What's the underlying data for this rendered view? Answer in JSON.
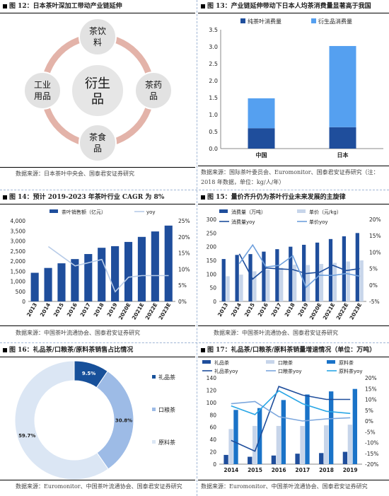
{
  "panels": {
    "p12": {
      "title": "图 12：日本茶叶深加工带动产业链延伸",
      "source": "数据来源：日本茶叶中央会、国泰君安证券研究"
    },
    "p13": {
      "title": "图 13：产业链延伸带动下日本人均茶消费量显著高于我国",
      "source_line1": "数据来源：国际茶叶委员会、Euromonitor、国泰君安证券研究（注：",
      "source_line2": "2018 年数据，单位：kg/人/年）"
    },
    "p14": {
      "title": "图 14：预计 2019-2023 年茶叶行业 CAGR 为 8%",
      "source": "数据来源：中国茶叶流通协会、国泰君安证券研究"
    },
    "p15": {
      "title": "图 15：量价齐升仍为茶叶行业未来发展的主旋律",
      "source": "数据来源：中国茶叶流通协会、国泰君安证券研究"
    },
    "p16": {
      "title": "图 16：礼品茶/口粮茶/原料茶销售占比情况",
      "source": "数据来源：Euromonitor、中国茶叶流通协会、国泰君安证券研究"
    },
    "p17": {
      "title": "图 17：礼品茶/口粮茶/原料茶销量增速情况（单位：万吨）",
      "source": "数据来源：Euromonitor、中国茶叶流通协会、国泰君安证券研究"
    }
  },
  "diagram": {
    "center_line1": "衍生",
    "center_line2": "品",
    "nodes": [
      {
        "id": "top",
        "line1": "茶饮",
        "line2": "料"
      },
      {
        "id": "right",
        "line1": "茶药",
        "line2": "品"
      },
      {
        "id": "bottom",
        "line1": "茶食",
        "line2": "品"
      },
      {
        "id": "left",
        "line1": "工业",
        "line2": "用品"
      }
    ],
    "colors": {
      "ring": "#e3b3a9",
      "node": "#e2e2e2",
      "text": "#111111"
    }
  },
  "chart_data": [
    {
      "id": "fig13",
      "type": "bar",
      "stacked": true,
      "categories": [
        "中国",
        "日本"
      ],
      "series": [
        {
          "name": "纯茶叶消费量",
          "values": [
            0.6,
            0.63
          ],
          "color": "#1f4e9c"
        },
        {
          "name": "衍生品消费量",
          "values": [
            0.88,
            2.39
          ],
          "color": "#55a0f0"
        }
      ],
      "ylim": [
        0,
        3.5
      ],
      "yticks": [
        "0.0",
        "0.5",
        "1.0",
        "1.5",
        "2.0",
        "2.5",
        "3.0",
        "3.5"
      ],
      "legend": "top"
    },
    {
      "id": "fig14",
      "type": "bar+line",
      "categories": [
        "2013",
        "2014",
        "2015",
        "2016",
        "2017",
        "2018",
        "2019",
        "2020E",
        "2021E",
        "2022E",
        "2023E"
      ],
      "series": [
        {
          "name": "茶叶销售额（亿元）",
          "kind": "bar",
          "axis": "left",
          "values": [
            1420,
            1660,
            1890,
            2100,
            2350,
            2660,
            2740,
            2950,
            3200,
            3470,
            3760
          ],
          "color": "#1f4e9c"
        },
        {
          "name": "yoy",
          "kind": "line",
          "axis": "right",
          "values": [
            null,
            17,
            14,
            11,
            12,
            13,
            3,
            7.5,
            8,
            8,
            8
          ],
          "color": "#b8cce8"
        }
      ],
      "ylim_left": [
        0,
        4000
      ],
      "yticks_left": [
        "0",
        "500",
        "1,000",
        "1,500",
        "2,000",
        "2,500",
        "3,000",
        "3,500",
        "4,000"
      ],
      "ylim_right": [
        0,
        25
      ],
      "yticks_right": [
        "0%",
        "5%",
        "10%",
        "15%",
        "20%",
        "25%"
      ],
      "legend": "top"
    },
    {
      "id": "fig15",
      "type": "bar+line",
      "categories": [
        "2013",
        "2014",
        "2015",
        "2016",
        "2017",
        "2018",
        "2019",
        "2020E",
        "2021E",
        "2022E",
        "2023E"
      ],
      "series": [
        {
          "name": "消费量（万吨）",
          "kind": "bar",
          "axis": "left",
          "values": [
            155,
            170,
            173,
            182,
            191,
            200,
            207,
            215,
            228,
            238,
            250
          ],
          "color": "#1f4e9c"
        },
        {
          "name": "单价（元/kg）",
          "kind": "bar",
          "axis": "left",
          "values": [
            92,
            98,
            110,
            116,
            123,
            134,
            133,
            137,
            141,
            146,
            150
          ],
          "color": "#c7d5ea"
        },
        {
          "name": "消费量yoy",
          "kind": "line",
          "axis": "right",
          "values": [
            null,
            9.5,
            1.8,
            5.2,
            4.9,
            4.7,
            3.5,
            3.9,
            6.0,
            4.4,
            5.0
          ],
          "color": "#1f4e9c"
        },
        {
          "name": "单价yoy",
          "kind": "line",
          "axis": "right",
          "values": [
            null,
            6.5,
            12.2,
            5.5,
            6.0,
            8.9,
            -0.7,
            3.0,
            2.9,
            3.5,
            2.7
          ],
          "color": "#6fa0dc"
        }
      ],
      "ylim_left": [
        0,
        300
      ],
      "yticks_left": [
        "0",
        "50",
        "100",
        "150",
        "200",
        "250",
        "300"
      ],
      "ylim_right": [
        -5,
        20
      ],
      "yticks_right": [
        "-5%",
        "0%",
        "5%",
        "10%",
        "15%",
        "20%"
      ],
      "legend": "top"
    },
    {
      "id": "fig16",
      "type": "pie",
      "donut": true,
      "labels": [
        "礼品茶",
        "口粮茶",
        "原料茶"
      ],
      "values": [
        9.5,
        30.8,
        59.7
      ],
      "value_labels": [
        "9.5%",
        "30.8%",
        "59.7%"
      ],
      "colors": [
        "#17509a",
        "#9dbbe6",
        "#dbe6f4"
      ],
      "legend": "right"
    },
    {
      "id": "fig17",
      "type": "bar+line",
      "categories": [
        "2014",
        "2015",
        "2016",
        "2017",
        "2018",
        "2019"
      ],
      "series": [
        {
          "name": "礼品茶",
          "kind": "bar",
          "axis": "left",
          "values": [
            15,
            12,
            14,
            17,
            18,
            20
          ],
          "color": "#1f4e9c"
        },
        {
          "name": "口粮茶",
          "kind": "bar",
          "axis": "left",
          "values": [
            57,
            62,
            62,
            62,
            63,
            64
          ],
          "color": "#c7d5ea"
        },
        {
          "name": "原料茶",
          "kind": "bar",
          "axis": "left",
          "values": [
            88,
            91,
            104,
            113,
            118,
            122
          ],
          "color": "#1a73c8"
        },
        {
          "name": "礼品茶yoy",
          "kind": "line",
          "axis": "right",
          "values": [
            -9,
            -14,
            16,
            12,
            10,
            10
          ],
          "color": "#1f4e9c"
        },
        {
          "name": "口粮茶yoy",
          "kind": "line",
          "axis": "right",
          "values": [
            8,
            9,
            2,
            0,
            1,
            1.5
          ],
          "color": "#7ca7dd"
        },
        {
          "name": "原料茶yoy",
          "kind": "line",
          "axis": "right",
          "values": [
            7,
            3,
            14,
            8,
            4.5,
            3.5
          ],
          "color": "#2aa7e6"
        }
      ],
      "ylim_left": [
        0,
        140
      ],
      "yticks_left": [
        "0",
        "20",
        "40",
        "60",
        "80",
        "100",
        "120",
        "140"
      ],
      "ylim_right": [
        -20,
        20
      ],
      "yticks_right": [
        "-20%",
        "-15%",
        "-10%",
        "-5%",
        "0%",
        "5%",
        "10%",
        "15%",
        "20%"
      ],
      "legend": "top"
    }
  ]
}
